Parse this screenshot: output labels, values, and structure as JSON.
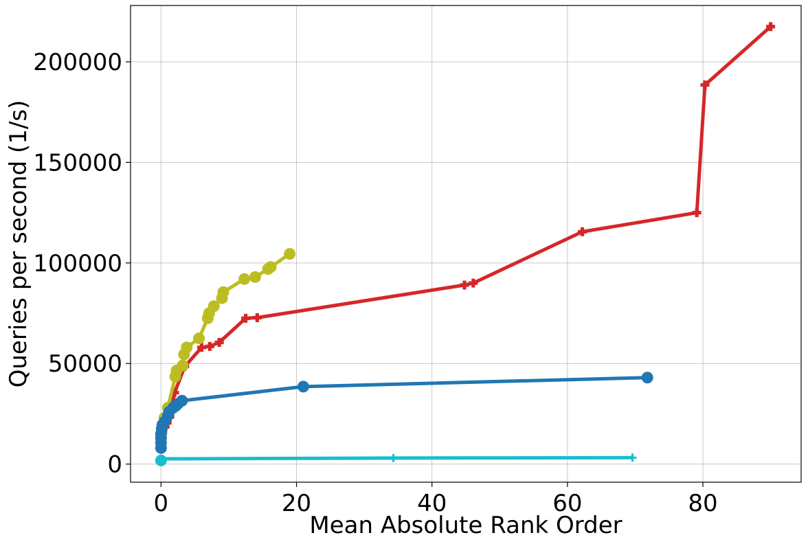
{
  "chart_data": {
    "type": "line",
    "title": "",
    "xlabel": "Mean Absolute Rank Order",
    "ylabel": "Queries per second (1/s)",
    "xlim": [
      -4.5,
      94.5
    ],
    "ylim": [
      -9000,
      228000
    ],
    "xticks": [
      0,
      20,
      40,
      60,
      80
    ],
    "xtick_labels": [
      "0",
      "20",
      "40",
      "60",
      "80"
    ],
    "yticks": [
      0,
      50000,
      100000,
      150000,
      200000
    ],
    "ytick_labels": [
      "0",
      "50000",
      "100000",
      "150000",
      "200000"
    ],
    "grid": true,
    "legend": "none",
    "series": [
      {
        "color": "#d62728",
        "marker": "plus-filled",
        "points": [
          [
            0.05,
            7500
          ],
          [
            0.08,
            9000
          ],
          [
            0.1,
            11000
          ],
          [
            0.15,
            13500
          ],
          [
            0.2,
            15500
          ],
          [
            0.6,
            18500
          ],
          [
            0.9,
            20500
          ],
          [
            1.3,
            23500
          ],
          [
            2.0,
            35500
          ],
          [
            3.5,
            48500
          ],
          [
            6.0,
            58000
          ],
          [
            7.2,
            58500
          ],
          [
            8.6,
            60500
          ],
          [
            12.5,
            72500
          ],
          [
            14.2,
            72800
          ],
          [
            44.8,
            89000
          ],
          [
            46.1,
            90000
          ],
          [
            62.2,
            115500
          ],
          [
            79.1,
            125000
          ],
          [
            80.3,
            188500
          ],
          [
            90.0,
            217500
          ]
        ]
      },
      {
        "color": "#bcbd22",
        "marker": "circle",
        "points": [
          [
            0.1,
            16000
          ],
          [
            0.5,
            23000
          ],
          [
            1.0,
            28000
          ],
          [
            2.1,
            43500
          ],
          [
            2.3,
            46500
          ],
          [
            3.2,
            49000
          ],
          [
            3.4,
            54500
          ],
          [
            3.8,
            58000
          ],
          [
            5.6,
            62500
          ],
          [
            6.9,
            72500
          ],
          [
            7.1,
            75000
          ],
          [
            7.8,
            78500
          ],
          [
            9.0,
            82500
          ],
          [
            9.2,
            85500
          ],
          [
            12.3,
            92000
          ],
          [
            13.9,
            93000
          ],
          [
            15.8,
            97000
          ],
          [
            16.2,
            98000
          ],
          [
            19.0,
            104500
          ]
        ]
      },
      {
        "color": "#1f77b4",
        "marker": "circle",
        "points": [
          [
            0.0,
            8000
          ],
          [
            0.0,
            10500
          ],
          [
            0.0,
            13000
          ],
          [
            0.0,
            15000
          ],
          [
            0.1,
            17500
          ],
          [
            0.2,
            19500
          ],
          [
            0.5,
            21000
          ],
          [
            1.0,
            24000
          ],
          [
            1.2,
            26000
          ],
          [
            1.8,
            28000
          ],
          [
            2.2,
            29000
          ],
          [
            2.5,
            30000
          ],
          [
            3.1,
            31500
          ],
          [
            21.0,
            38500
          ],
          [
            71.8,
            43000
          ]
        ]
      },
      {
        "color": "#17becf",
        "marker": "plus-thin",
        "points": [
          [
            0.0,
            1800
          ],
          [
            0.0,
            2200
          ],
          [
            0.1,
            2600
          ],
          [
            34.3,
            3000
          ],
          [
            69.6,
            3200
          ]
        ]
      }
    ]
  }
}
